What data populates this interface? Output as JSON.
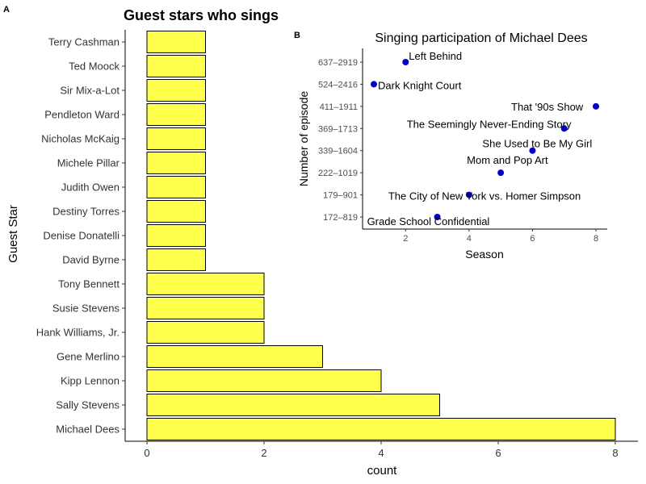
{
  "chart_data": [
    {
      "panel": "A",
      "type": "bar",
      "orientation": "horizontal",
      "title": "Guest stars who sings",
      "xlabel": "count",
      "ylabel": "Guest Star",
      "xlim": [
        0,
        8
      ],
      "x_ticks": [
        "0",
        "2",
        "4",
        "6",
        "8"
      ],
      "bar_color": "#ffff4d",
      "bar_edge_color": "#000000",
      "grid": false,
      "categories": [
        "Terry Cashman",
        "Ted Moock",
        "Sir Mix-a-Lot",
        "Pendleton Ward",
        "Nicholas McKaig",
        "Michele Pillar",
        "Judith Owen",
        "Destiny Torres",
        "Denise Donatelli",
        "David Byrne",
        "Tony Bennett",
        "Susie Stevens",
        "Hank Williams, Jr.",
        "Gene Merlino",
        "Kipp Lennon",
        "Sally Stevens",
        "Michael Dees"
      ],
      "values": [
        1,
        1,
        1,
        1,
        1,
        1,
        1,
        1,
        1,
        1,
        2,
        2,
        2,
        3,
        4,
        5,
        8
      ]
    },
    {
      "panel": "B",
      "type": "scatter",
      "title": "Singing participation of Michael Dees",
      "xlabel": "Season",
      "ylabel": "Number of episode",
      "xlim": [
        1,
        8
      ],
      "x_ticks": [
        "2",
        "4",
        "6",
        "8"
      ],
      "y_categories": [
        "172–819",
        "179–901",
        "222–1019",
        "339–1604",
        "369–1713",
        "411–1911",
        "524–2416",
        "637–2919"
      ],
      "point_color": "#0000cc",
      "grid": false,
      "points": [
        {
          "x": 3,
          "y": "172–819",
          "label": "Grade School Confidential"
        },
        {
          "x": 4,
          "y": "179–901",
          "label": "The City of New York vs. Homer Simpson"
        },
        {
          "x": 5,
          "y": "222–1019",
          "label": "Mom and Pop Art"
        },
        {
          "x": 6,
          "y": "339–1604",
          "label": "She Used to Be My Girl"
        },
        {
          "x": 7,
          "y": "369–1713",
          "label": "The Seemingly Never-Ending Story"
        },
        {
          "x": 8,
          "y": "411–1911",
          "label": "That '90s Show"
        },
        {
          "x": 1,
          "y": "524–2416",
          "label": "Dark Knight Court"
        },
        {
          "x": 2,
          "y": "637–2919",
          "label": "Left Behind"
        }
      ]
    }
  ]
}
